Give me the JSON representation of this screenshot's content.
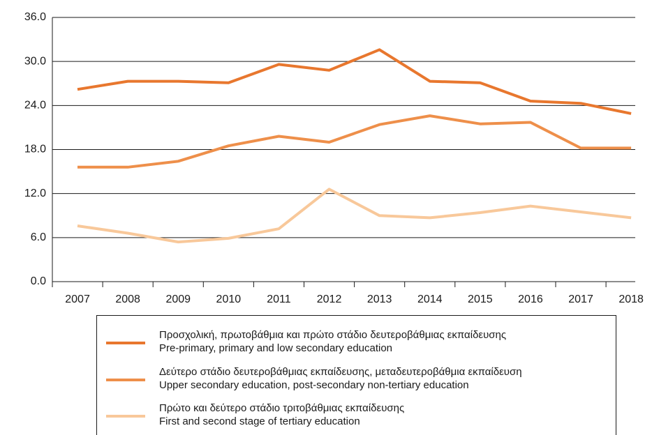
{
  "chart_data": {
    "type": "line",
    "categories": [
      "2007",
      "2008",
      "2009",
      "2010",
      "2011",
      "2012",
      "2013",
      "2014",
      "2015",
      "2016",
      "2017",
      "2018"
    ],
    "series": [
      {
        "name": "Προσχολική, πρωτοβάθμια και πρώτο στάδιο δευτεροβάθμιας εκπαίδευσης",
        "subname": "Pre-primary, primary and low secondary education",
        "color": "#e8772e",
        "values": [
          26.2,
          27.3,
          27.3,
          27.1,
          29.6,
          28.8,
          31.6,
          27.3,
          27.1,
          24.6,
          24.3,
          22.9
        ]
      },
      {
        "name": "Δεύτερο στάδιο δευτεροβάθμιας εκπαίδευσης, μεταδευτεροβάθμια εκπαίδευση",
        "subname": "Upper secondary education, post-secondary non-tertiary education",
        "color": "#ee8f4a",
        "values": [
          15.6,
          15.6,
          16.4,
          18.5,
          19.8,
          19.0,
          21.4,
          22.6,
          21.5,
          21.7,
          18.2,
          18.2
        ]
      },
      {
        "name": "Πρώτο και δεύτερο στάδιο τριτοβάθμιας εκπαίδευσης",
        "subname": "First and second stage of tertiary education",
        "color": "#f8c89a",
        "values": [
          7.6,
          6.6,
          5.4,
          5.9,
          7.2,
          12.6,
          9.0,
          8.7,
          9.4,
          10.3,
          9.5,
          8.7
        ]
      }
    ],
    "ylim": [
      0,
      36
    ],
    "yticks": [
      {
        "value": 0,
        "label": "0.0"
      },
      {
        "value": 6,
        "label": "6.0"
      },
      {
        "value": 12,
        "label": "12.0"
      },
      {
        "value": 18,
        "label": "18.0"
      },
      {
        "value": 24,
        "label": "24.0"
      },
      {
        "value": 30,
        "label": "30.0"
      },
      {
        "value": 36,
        "label": "36.0"
      }
    ],
    "grid": true
  }
}
